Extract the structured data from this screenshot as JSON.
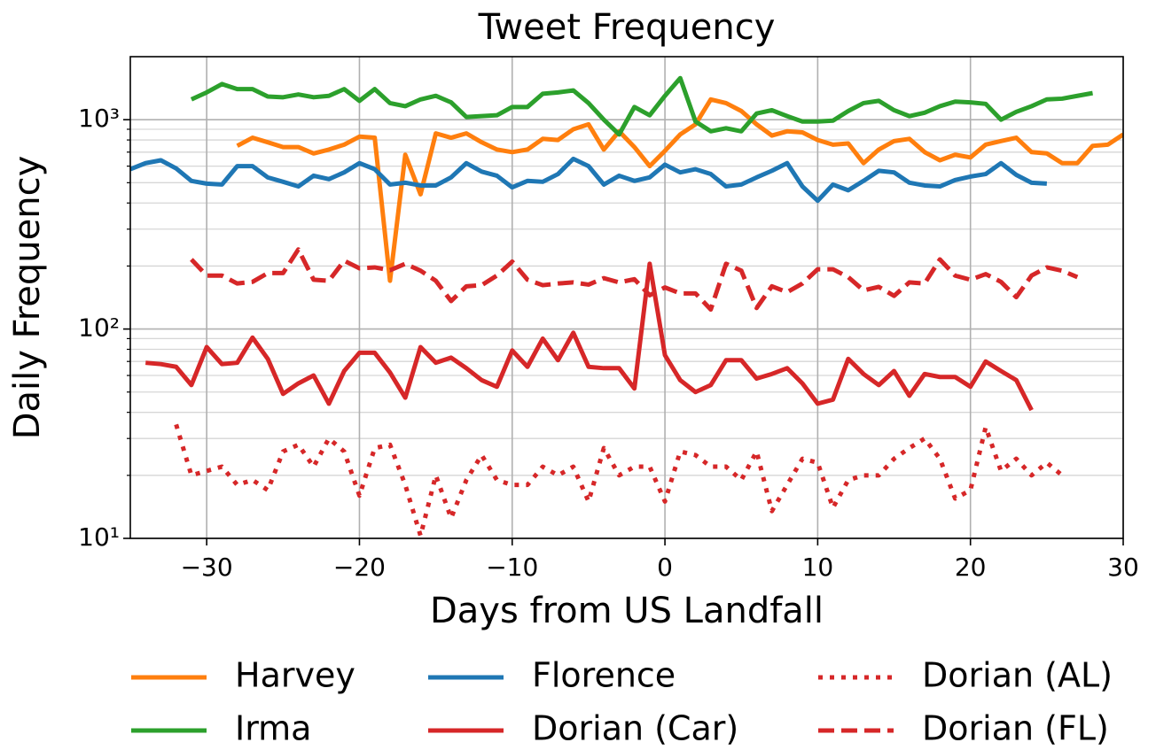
{
  "chart_data": {
    "type": "line",
    "title": "Tweet Frequency",
    "x_label": "Days from US Landfall",
    "y_label": "Daily Frequency",
    "yscale": "log",
    "grid": true,
    "legend": "bottom",
    "xlim": [
      -35,
      30
    ],
    "xticks": [
      {
        "value": -30,
        "label": "−30"
      },
      {
        "value": -20,
        "label": "−20"
      },
      {
        "value": -10,
        "label": "−10"
      },
      0,
      10,
      20,
      30
    ],
    "ylim": [
      10,
      2000
    ],
    "yticks": [
      {
        "value": 10,
        "label": "10¹"
      },
      {
        "value": 100,
        "label": "10²"
      },
      {
        "value": 1000,
        "label": "10³"
      }
    ],
    "yminorticks": [
      20,
      30,
      40,
      50,
      60,
      70,
      80,
      90,
      200,
      300,
      400,
      500,
      600,
      700,
      800,
      900
    ],
    "x": [
      -35,
      -34,
      -33,
      -32,
      -31,
      -30,
      -29,
      -28,
      -27,
      -26,
      -25,
      -24,
      -23,
      -22,
      -21,
      -20,
      -19,
      -18,
      -17,
      -16,
      -15,
      -14,
      -13,
      -12,
      -11,
      -10,
      -9,
      -8,
      -7,
      -6,
      -5,
      -4,
      -3,
      -2,
      -1,
      0,
      1,
      2,
      3,
      4,
      5,
      6,
      7,
      8,
      9,
      10,
      11,
      12,
      13,
      14,
      15,
      16,
      17,
      18,
      19,
      20,
      21,
      22,
      23,
      24,
      25,
      26,
      27,
      28,
      29,
      30
    ],
    "series": [
      {
        "name": "Harvey",
        "color": "#ff7f0e",
        "dash": "solid",
        "values": [
          null,
          null,
          null,
          null,
          null,
          null,
          null,
          750,
          820,
          780,
          740,
          740,
          690,
          720,
          760,
          830,
          820,
          170,
          680,
          440,
          860,
          820,
          860,
          780,
          720,
          700,
          720,
          810,
          800,
          900,
          950,
          720,
          880,
          740,
          600,
          710,
          850,
          950,
          1250,
          1200,
          1100,
          950,
          840,
          880,
          870,
          800,
          760,
          770,
          620,
          720,
          790,
          810,
          700,
          640,
          680,
          660,
          760,
          790,
          820,
          700,
          690,
          620,
          620,
          750,
          760,
          850
        ]
      },
      {
        "name": "Irma",
        "color": "#2ca02c",
        "dash": "solid",
        "values": [
          null,
          null,
          null,
          null,
          1250,
          1350,
          1480,
          1400,
          1400,
          1290,
          1280,
          1320,
          1280,
          1300,
          1400,
          1230,
          1400,
          1200,
          1160,
          1250,
          1300,
          1210,
          1030,
          1040,
          1050,
          1150,
          1150,
          1330,
          1350,
          1380,
          1200,
          1000,
          850,
          1150,
          1050,
          1300,
          1580,
          980,
          880,
          910,
          880,
          1070,
          1110,
          1040,
          980,
          980,
          990,
          1100,
          1200,
          1230,
          1110,
          1040,
          1080,
          1160,
          1220,
          1210,
          1190,
          1000,
          1090,
          1160,
          1250,
          1260,
          1300,
          1340,
          null,
          null
        ]
      },
      {
        "name": "Florence",
        "color": "#1f77b4",
        "dash": "solid",
        "values": [
          580,
          620,
          640,
          585,
          510,
          495,
          490,
          600,
          600,
          530,
          505,
          480,
          540,
          520,
          560,
          620,
          580,
          490,
          500,
          485,
          485,
          530,
          620,
          565,
          540,
          475,
          510,
          505,
          550,
          650,
          600,
          490,
          540,
          510,
          530,
          610,
          560,
          580,
          550,
          480,
          490,
          530,
          570,
          620,
          480,
          410,
          490,
          460,
          510,
          570,
          560,
          500,
          485,
          480,
          515,
          535,
          550,
          620,
          545,
          500,
          495,
          null,
          null,
          null,
          null,
          null
        ]
      },
      {
        "name": "Dorian (Car)",
        "color": "#d62728",
        "dash": "solid",
        "values": [
          null,
          69,
          68,
          66,
          54,
          82,
          68,
          69,
          91,
          72,
          49,
          55,
          60,
          44,
          63,
          77,
          77,
          62,
          47,
          82,
          69,
          73,
          65,
          57,
          53,
          79,
          66,
          90,
          71,
          96,
          66,
          65,
          65,
          52,
          205,
          75,
          57,
          50,
          54,
          71,
          71,
          58,
          61,
          65,
          55,
          44,
          46,
          72,
          61,
          54,
          63,
          48,
          61,
          59,
          59,
          53,
          70,
          63,
          57,
          41,
          null,
          null,
          null,
          null,
          null,
          null
        ]
      },
      {
        "name": "Dorian (AL)",
        "color": "#d62728",
        "dash": "dotted",
        "values": [
          null,
          null,
          null,
          35,
          20,
          21,
          22,
          18,
          19,
          17,
          26,
          28,
          22,
          30,
          26,
          16,
          27,
          28,
          18,
          10.3,
          20,
          12.5,
          19,
          25,
          19,
          18,
          18,
          22,
          20,
          22,
          15,
          27,
          20,
          22,
          22,
          15,
          26,
          25,
          22,
          22,
          19,
          26,
          13.5,
          18,
          24,
          23,
          14,
          19,
          20,
          20,
          24,
          27,
          30,
          24,
          15.5,
          17,
          34,
          21,
          24,
          20,
          23,
          20,
          null,
          null,
          null,
          null
        ]
      },
      {
        "name": "Dorian (FL)",
        "color": "#d62728",
        "dash": "dashed",
        "values": [
          null,
          null,
          null,
          null,
          215,
          180,
          180,
          165,
          168,
          185,
          185,
          240,
          172,
          170,
          212,
          195,
          197,
          191,
          205,
          190,
          170,
          136,
          160,
          162,
          180,
          210,
          172,
          162,
          165,
          167,
          163,
          175,
          167,
          173,
          145,
          158,
          148,
          148,
          124,
          205,
          190,
          126,
          160,
          150,
          165,
          193,
          193,
          177,
          153,
          159,
          144,
          167,
          165,
          215,
          180,
          172,
          183,
          168,
          142,
          180,
          197,
          190,
          177,
          null,
          null,
          null
        ]
      }
    ]
  }
}
